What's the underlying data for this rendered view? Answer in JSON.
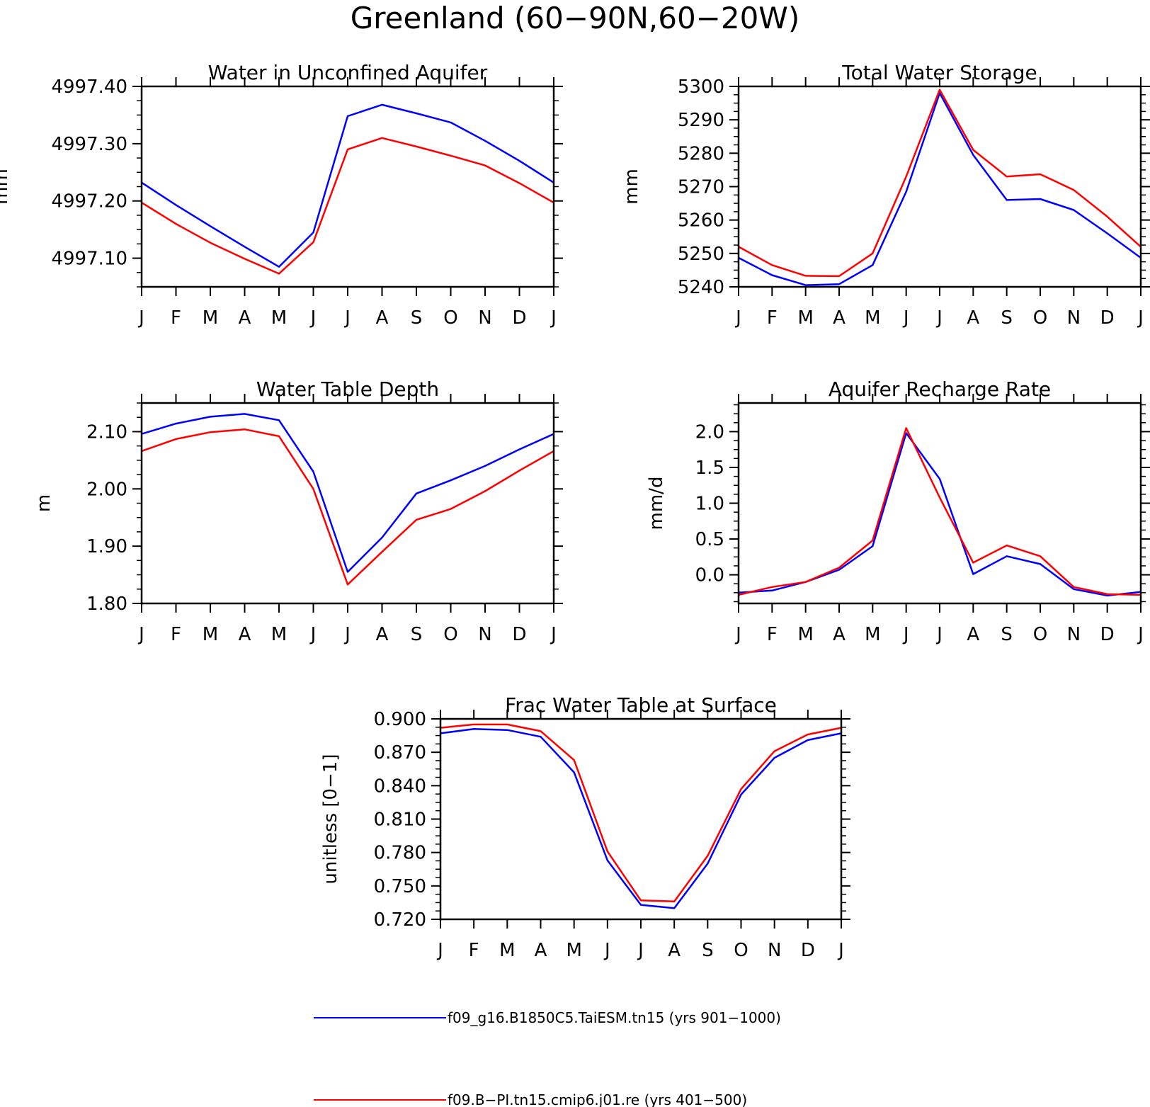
{
  "figure": {
    "title": "Greenland (60−90N,60−20W)"
  },
  "legend": {
    "entries": [
      {
        "label": "f09_g16.B1850C5.TaiESM.tn15 (yrs 901−1000)",
        "color": "#0000ff"
      },
      {
        "label": "f09.B−PI.tn15.cmip6.j01.re (yrs 401−500)",
        "color": "#ff0000"
      }
    ]
  },
  "chart_data": [
    {
      "type": "line",
      "title": "Water in Unconfined Aquifer",
      "xlabel": "",
      "ylabel": "mm",
      "categories": [
        "J",
        "F",
        "M",
        "A",
        "M",
        "J",
        "J",
        "A",
        "S",
        "O",
        "N",
        "D",
        "J"
      ],
      "ylim": [
        4997.05,
        4997.4
      ],
      "yticks": [
        4997.1,
        4997.2,
        4997.3,
        4997.4
      ],
      "ytick_labels": [
        "4997.10",
        "4997.20",
        "4997.30",
        "4997.40"
      ],
      "series": [
        {
          "color": "#0000ff",
          "values": [
            4997.232,
            4997.193,
            4997.156,
            4997.12,
            4997.085,
            4997.145,
            4997.348,
            4997.368,
            4997.353,
            4997.337,
            4997.305,
            4997.27,
            4997.232
          ]
        },
        {
          "color": "#ff0000",
          "values": [
            4997.197,
            4997.16,
            4997.127,
            4997.099,
            4997.073,
            4997.128,
            4997.29,
            4997.31,
            4997.295,
            4997.279,
            4997.262,
            4997.231,
            4997.197
          ]
        }
      ]
    },
    {
      "type": "line",
      "title": "Total Water Storage",
      "xlabel": "",
      "ylabel": "mm",
      "categories": [
        "J",
        "F",
        "M",
        "A",
        "M",
        "J",
        "J",
        "A",
        "S",
        "O",
        "N",
        "D",
        "J"
      ],
      "ylim": [
        5240,
        5300
      ],
      "yticks": [
        5240,
        5250,
        5260,
        5270,
        5280,
        5290,
        5300
      ],
      "ytick_labels": [
        "5240",
        "5250",
        "5260",
        "5270",
        "5280",
        "5290",
        "5300"
      ],
      "series": [
        {
          "color": "#0000ff",
          "values": [
            5248.7,
            5243.5,
            5240.5,
            5240.8,
            5246.5,
            5268.5,
            5298.0,
            5279.5,
            5266.0,
            5266.3,
            5263.0,
            5256.0,
            5248.7
          ]
        },
        {
          "color": "#ff0000",
          "values": [
            5252.0,
            5246.5,
            5243.3,
            5243.2,
            5250.0,
            5273.0,
            5299.0,
            5281.0,
            5273.0,
            5273.7,
            5269.0,
            5261.0,
            5252.0
          ]
        }
      ]
    },
    {
      "type": "line",
      "title": "Water Table Depth",
      "xlabel": "",
      "ylabel": "m",
      "categories": [
        "J",
        "F",
        "M",
        "A",
        "M",
        "J",
        "J",
        "A",
        "S",
        "O",
        "N",
        "D",
        "J"
      ],
      "ylim": [
        1.8,
        2.15
      ],
      "yticks": [
        1.8,
        1.9,
        2.0,
        2.1
      ],
      "ytick_labels": [
        "1.80",
        "1.90",
        "2.00",
        "2.10"
      ],
      "series": [
        {
          "color": "#0000ff",
          "values": [
            2.096,
            2.114,
            2.126,
            2.131,
            2.12,
            2.03,
            1.855,
            1.915,
            1.992,
            2.015,
            2.04,
            2.069,
            2.096
          ]
        },
        {
          "color": "#ff0000",
          "values": [
            2.066,
            2.087,
            2.099,
            2.104,
            2.092,
            2.0,
            1.833,
            1.89,
            1.946,
            1.965,
            1.996,
            2.032,
            2.066
          ]
        }
      ]
    },
    {
      "type": "line",
      "title": "Aquifer Recharge Rate",
      "xlabel": "",
      "ylabel": "mm/d",
      "categories": [
        "J",
        "F",
        "M",
        "A",
        "M",
        "J",
        "J",
        "A",
        "S",
        "O",
        "N",
        "D",
        "J"
      ],
      "ylim": [
        -0.4,
        2.4
      ],
      "yticks": [
        0.0,
        0.5,
        1.0,
        1.5,
        2.0
      ],
      "ytick_labels": [
        "0.0",
        "0.5",
        "1.0",
        "1.5",
        "2.0"
      ],
      "series": [
        {
          "color": "#0000ff",
          "values": [
            -0.25,
            -0.22,
            -0.1,
            0.07,
            0.4,
            1.98,
            1.34,
            0.01,
            0.26,
            0.15,
            -0.2,
            -0.29,
            -0.24
          ]
        },
        {
          "color": "#ff0000",
          "values": [
            -0.28,
            -0.17,
            -0.1,
            0.1,
            0.48,
            2.05,
            1.08,
            0.17,
            0.41,
            0.26,
            -0.17,
            -0.27,
            -0.28
          ]
        }
      ]
    },
    {
      "type": "line",
      "title": "Frac Water Table at Surface",
      "xlabel": "",
      "ylabel": "unitless [0−1]",
      "categories": [
        "J",
        "F",
        "M",
        "A",
        "M",
        "J",
        "J",
        "A",
        "S",
        "O",
        "N",
        "D",
        "J"
      ],
      "ylim": [
        0.72,
        0.9
      ],
      "yticks": [
        0.72,
        0.75,
        0.78,
        0.81,
        0.84,
        0.87,
        0.9
      ],
      "ytick_labels": [
        "0.720",
        "0.750",
        "0.780",
        "0.810",
        "0.840",
        "0.870",
        "0.900"
      ],
      "series": [
        {
          "color": "#0000ff",
          "values": [
            0.887,
            0.891,
            0.89,
            0.884,
            0.852,
            0.773,
            0.733,
            0.73,
            0.77,
            0.832,
            0.865,
            0.881,
            0.887
          ]
        },
        {
          "color": "#ff0000",
          "values": [
            0.892,
            0.895,
            0.895,
            0.889,
            0.863,
            0.781,
            0.737,
            0.736,
            0.777,
            0.837,
            0.871,
            0.886,
            0.892
          ]
        }
      ]
    }
  ]
}
